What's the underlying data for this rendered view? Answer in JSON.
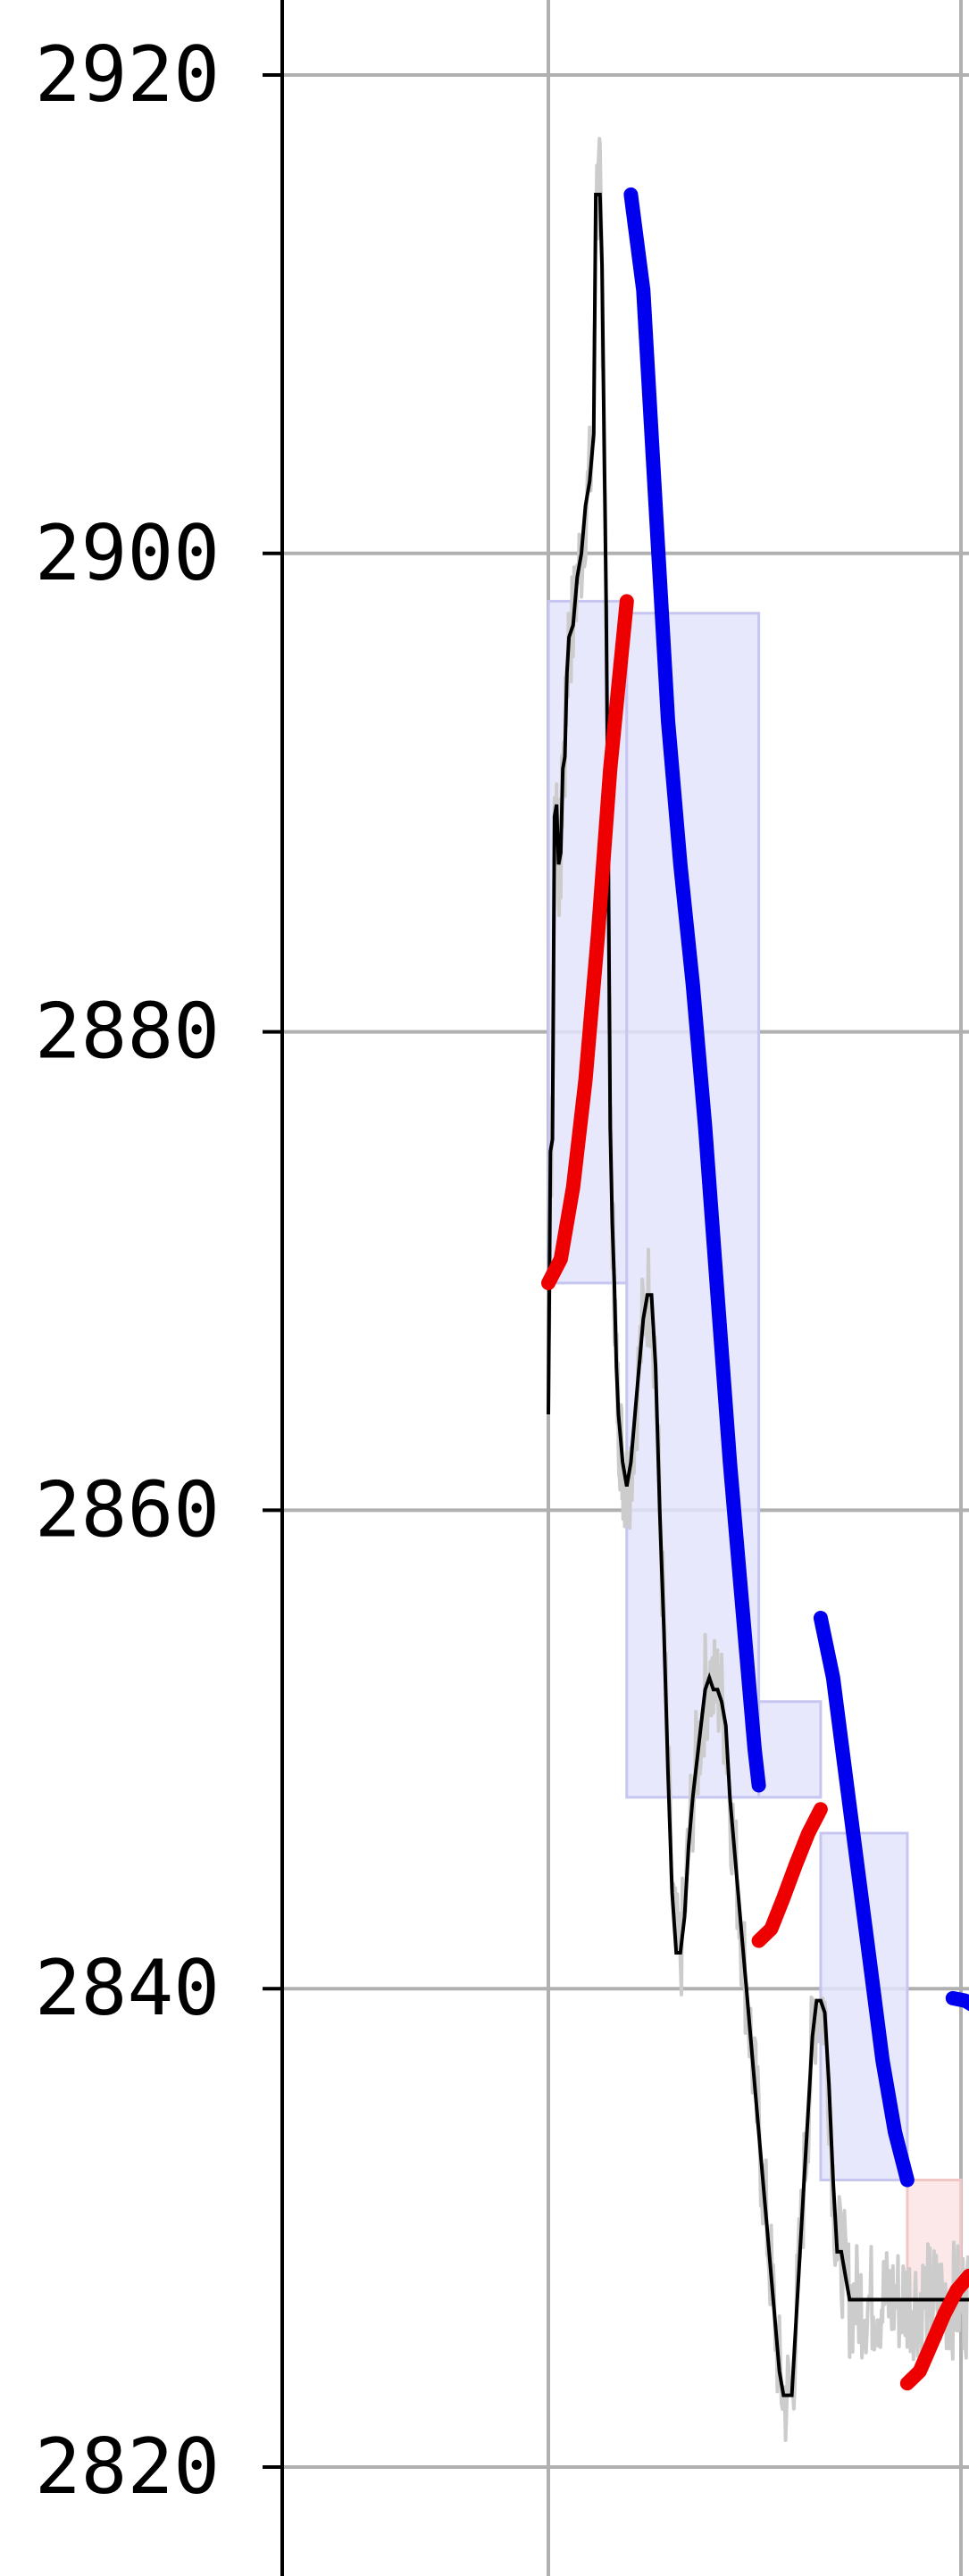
{
  "chart_data": {
    "type": "line",
    "title": "",
    "xlabel": "",
    "ylabel": "",
    "ylim": [
      2816.5,
      2923
    ],
    "xlim": [
      -1.0,
      1.55
    ],
    "y_ticks": [
      {
        "value": 2920,
        "label": "2920"
      },
      {
        "value": 2900,
        "label": "2900"
      },
      {
        "value": 2880,
        "label": "2880"
      },
      {
        "value": 2860,
        "label": "2860"
      },
      {
        "value": 2840,
        "label": "2840"
      },
      {
        "value": 2820,
        "label": "2820"
      }
    ],
    "x_grid": [
      0,
      1
    ],
    "grid": true,
    "colors": {
      "raw_price": "#cccccc",
      "smoothed_price": "#000000",
      "down_move": "#0000ee",
      "up_move": "#ee0000",
      "box_fill": "#e4e4fb",
      "box_edge": "#c6c6f0",
      "box_fill_red": "#fbe4e4"
    },
    "boxes": [
      {
        "x0": 0.0,
        "x1": 0.19,
        "y0": 2869.5,
        "y1": 2898.0,
        "color": "blue"
      },
      {
        "x0": 0.19,
        "x1": 0.51,
        "y0": 2848.0,
        "y1": 2897.5,
        "color": "blue"
      },
      {
        "x0": 0.51,
        "x1": 0.66,
        "y0": 2848.0,
        "y1": 2852.0,
        "color": "blue"
      },
      {
        "x0": 0.66,
        "x1": 0.87,
        "y0": 2832.0,
        "y1": 2846.5,
        "color": "blue"
      },
      {
        "x0": 0.87,
        "x1": 1.0,
        "y0": 2827.0,
        "y1": 2832.0,
        "color": "red"
      }
    ],
    "series": [
      {
        "style": "smoothed_price",
        "x": [
          0.0,
          0.005,
          0.01,
          0.015,
          0.02,
          0.025,
          0.03,
          0.035,
          0.04,
          0.045,
          0.05,
          0.06,
          0.07,
          0.08,
          0.09,
          0.1,
          0.11,
          0.115,
          0.12,
          0.125,
          0.13,
          0.135,
          0.14,
          0.145,
          0.15,
          0.155,
          0.16,
          0.165,
          0.17,
          0.175,
          0.18,
          0.185,
          0.19,
          0.2,
          0.21,
          0.22,
          0.23,
          0.24,
          0.25,
          0.26,
          0.27,
          0.28,
          0.29,
          0.3,
          0.31,
          0.32,
          0.33,
          0.34,
          0.35,
          0.36,
          0.37,
          0.38,
          0.39,
          0.4,
          0.41,
          0.42,
          0.43,
          0.44,
          0.45,
          0.46,
          0.47,
          0.48,
          0.49,
          0.5,
          0.51,
          0.52,
          0.53,
          0.54,
          0.55,
          0.56,
          0.57,
          0.58,
          0.59,
          0.6,
          0.61,
          0.62,
          0.63,
          0.64,
          0.65,
          0.66,
          0.67,
          0.68,
          0.69,
          0.7,
          0.71,
          0.72,
          0.73,
          0.74,
          0.75,
          0.76,
          0.77,
          0.78,
          0.79,
          0.8,
          0.81,
          0.82,
          0.83,
          0.84,
          0.85,
          0.86,
          0.87,
          0.88,
          0.89,
          0.9,
          0.91,
          0.92,
          0.93,
          0.94,
          0.95,
          0.96,
          0.97,
          0.98,
          0.99,
          1.0,
          1.01,
          1.02
        ],
        "y": [
          2864,
          2875,
          2875.5,
          2889,
          2889.5,
          2887,
          2887.5,
          2891,
          2891.5,
          2895,
          2896.5,
          2897,
          2899,
          2900,
          2902,
          2903,
          2905,
          2915,
          2915,
          2915,
          2912,
          2905,
          2898,
          2888,
          2876,
          2872,
          2869.5,
          2866,
          2864,
          2863,
          2862,
          2861.5,
          2861,
          2862,
          2864,
          2866,
          2868,
          2869,
          2869,
          2866,
          2860,
          2855,
          2849,
          2844,
          2841.5,
          2841.5,
          2843,
          2846,
          2848,
          2849.5,
          2851,
          2852.5,
          2853,
          2852.5,
          2852.5,
          2852,
          2851,
          2848,
          2846,
          2844,
          2842,
          2840,
          2838,
          2836,
          2834,
          2832,
          2830,
          2828,
          2826,
          2824,
          2823,
          2823,
          2823,
          2826,
          2829,
          2832,
          2835,
          2838,
          2839.5,
          2839.5,
          2839,
          2836,
          2832,
          2829,
          2829,
          2828,
          2827,
          2827,
          2827,
          2827,
          2827,
          2827,
          2827,
          2827,
          2827,
          2827,
          2827,
          2827,
          2827,
          2827,
          2827,
          2827,
          2827,
          2827,
          2827,
          2827,
          2827,
          2827,
          2827,
          2827,
          2827,
          2827,
          2827,
          2827,
          2827,
          2827
        ]
      },
      {
        "style": "down_move",
        "x": [
          0.2,
          0.23,
          0.26,
          0.29,
          0.32,
          0.35,
          0.38,
          0.41,
          0.44,
          0.47,
          0.5,
          0.51
        ],
        "y": [
          2915,
          2911,
          2902,
          2893,
          2887,
          2882,
          2876,
          2869,
          2862,
          2856,
          2850,
          2848.5
        ]
      },
      {
        "style": "up_move",
        "x": [
          0.0,
          0.03,
          0.06,
          0.09,
          0.12,
          0.15,
          0.19
        ],
        "y": [
          2869.5,
          2870.5,
          2873.5,
          2878,
          2884,
          2891,
          2898
        ]
      },
      {
        "style": "down_move",
        "x": [
          0.66,
          0.69,
          0.72,
          0.75,
          0.78,
          0.81,
          0.84,
          0.87
        ],
        "y": [
          2855.5,
          2853,
          2849,
          2845,
          2841,
          2837,
          2834,
          2832
        ]
      },
      {
        "style": "up_move",
        "x": [
          0.51,
          0.54,
          0.57,
          0.6,
          0.63,
          0.66
        ],
        "y": [
          2842,
          2842.5,
          2843.8,
          2845.2,
          2846.5,
          2847.5
        ]
      },
      {
        "style": "up_move",
        "x": [
          0.87,
          0.9,
          0.93,
          0.96,
          0.99,
          1.02
        ],
        "y": [
          2823.5,
          2824,
          2825.2,
          2826.4,
          2827.4,
          2828
        ]
      },
      {
        "style": "down_move",
        "x": [
          0.98,
          1.01,
          1.04
        ],
        "y": [
          2839.6,
          2839.5,
          2839.2
        ]
      }
    ]
  }
}
